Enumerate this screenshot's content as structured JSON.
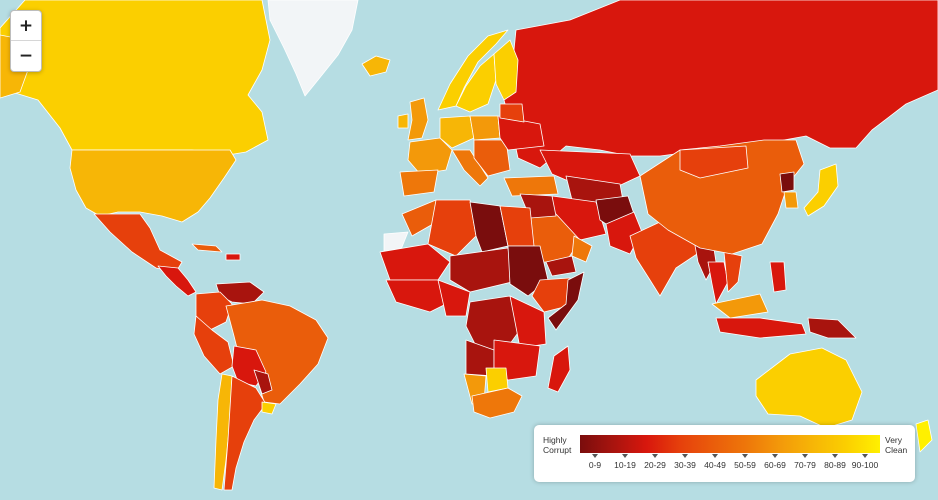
{
  "zoom": {
    "in_label": "+",
    "out_label": "−"
  },
  "legend": {
    "low_line1": "Highly",
    "low_line2": "Corrupt",
    "high_line1": "Very",
    "high_line2": "Clean",
    "ranges": [
      "0-9",
      "10-19",
      "20-29",
      "30-39",
      "40-49",
      "50-59",
      "60-69",
      "70-79",
      "80-89",
      "90-100"
    ],
    "colors": [
      "#7a0d0d",
      "#a8140e",
      "#d8170d",
      "#e6400c",
      "#ea5d0b",
      "#ee770a",
      "#f3990a",
      "#f7b606",
      "#fbcf00",
      "#fff000"
    ]
  },
  "map_colors": {
    "ocean": "#b6dde3",
    "ice": "#f2f5f7",
    "border": "#ffffff"
  }
}
